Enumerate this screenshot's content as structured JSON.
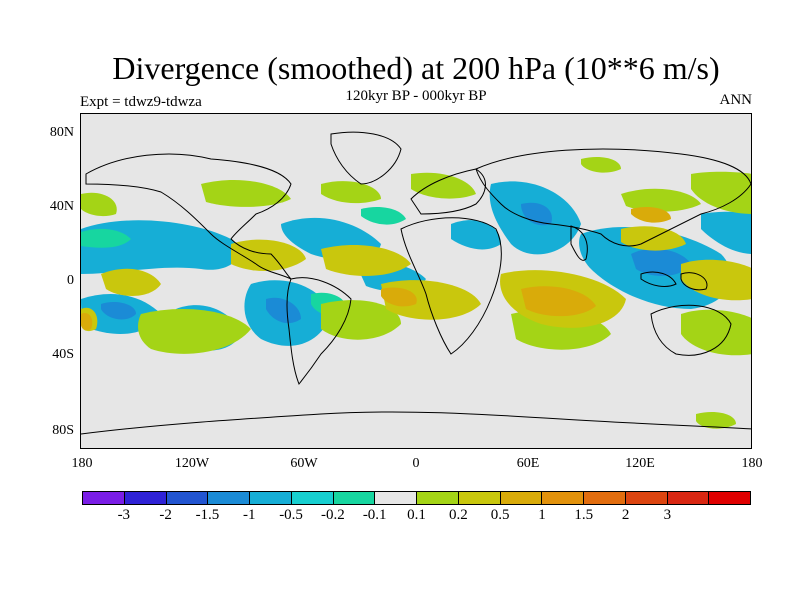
{
  "title": "Divergence (smoothed) at 200 hPa (10**6 m/s)",
  "subtitle": "120kyr BP - 000kyr BP",
  "left_label": "Expt = tdwz9-tdwza",
  "right_label": "ANN",
  "y_ticks": [
    "80N",
    "40N",
    "0",
    "40S",
    "80S"
  ],
  "x_ticks": [
    "180",
    "120W",
    "60W",
    "0",
    "60E",
    "120E",
    "180"
  ],
  "colorbar": {
    "colors": [
      "#7a1de6",
      "#2f22d6",
      "#2255d1",
      "#1b8bd6",
      "#16aed6",
      "#17cfd0",
      "#17d6a0",
      "#e6e6e6",
      "#a4d416",
      "#c9c70d",
      "#d9ab0a",
      "#e2920c",
      "#e26d0e",
      "#dc4510",
      "#d92712",
      "#e00000"
    ],
    "labels": [
      "-3",
      "-2",
      "-1.5",
      "-1",
      "-0.5",
      "-0.2",
      "-0.1",
      "0.1",
      "0.2",
      "0.5",
      "1",
      "1.5",
      "2",
      "3"
    ]
  },
  "fill_colors": {
    "land_ocean_neutral": "#e6e6e6",
    "pos_weak": "#a4d416",
    "pos_mid": "#c9c70d",
    "pos_strong": "#d9ab0a",
    "neg_weak": "#17d6a0",
    "neg_mid": "#16aed6",
    "neg_strong": "#1b8bd6"
  },
  "coastline_color": "#000000"
}
